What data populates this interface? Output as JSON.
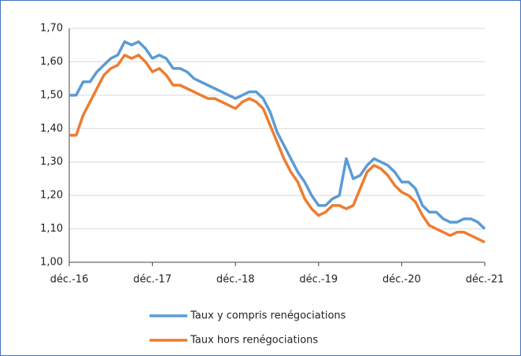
{
  "chart_data": {
    "type": "line",
    "categories": [
      "déc.-16",
      null,
      null,
      null,
      null,
      null,
      null,
      null,
      null,
      null,
      null,
      null,
      "déc.-17",
      null,
      null,
      null,
      null,
      null,
      null,
      null,
      null,
      null,
      null,
      null,
      "déc.-18",
      null,
      null,
      null,
      null,
      null,
      null,
      null,
      null,
      null,
      null,
      null,
      "déc.-19",
      null,
      null,
      null,
      null,
      null,
      null,
      null,
      null,
      null,
      null,
      null,
      "déc.-20",
      null,
      null,
      null,
      null,
      null,
      null,
      null,
      null,
      null,
      null,
      null,
      "déc.-21"
    ],
    "series": [
      {
        "name": "Taux y compris renégociations",
        "color": "#5b9bd5",
        "values": [
          1.5,
          1.5,
          1.54,
          1.54,
          1.57,
          1.59,
          1.61,
          1.62,
          1.66,
          1.65,
          1.66,
          1.64,
          1.61,
          1.62,
          1.61,
          1.58,
          1.58,
          1.57,
          1.55,
          1.54,
          1.53,
          1.52,
          1.51,
          1.5,
          1.49,
          1.5,
          1.51,
          1.51,
          1.49,
          1.45,
          1.39,
          1.35,
          1.31,
          1.27,
          1.24,
          1.2,
          1.17,
          1.17,
          1.19,
          1.2,
          1.31,
          1.25,
          1.26,
          1.29,
          1.31,
          1.3,
          1.29,
          1.27,
          1.24,
          1.24,
          1.22,
          1.17,
          1.15,
          1.15,
          1.13,
          1.12,
          1.12,
          1.13,
          1.13,
          1.12,
          1.1
        ]
      },
      {
        "name": "Taux hors renégociations",
        "color": "#ed7d31",
        "values": [
          1.38,
          1.38,
          1.44,
          1.48,
          1.52,
          1.56,
          1.58,
          1.59,
          1.62,
          1.61,
          1.62,
          1.6,
          1.57,
          1.58,
          1.56,
          1.53,
          1.53,
          1.52,
          1.51,
          1.5,
          1.49,
          1.49,
          1.48,
          1.47,
          1.46,
          1.48,
          1.49,
          1.48,
          1.46,
          1.41,
          1.36,
          1.31,
          1.27,
          1.24,
          1.19,
          1.16,
          1.14,
          1.15,
          1.17,
          1.17,
          1.16,
          1.17,
          1.22,
          1.27,
          1.29,
          1.28,
          1.26,
          1.23,
          1.21,
          1.2,
          1.18,
          1.14,
          1.11,
          1.1,
          1.09,
          1.08,
          1.09,
          1.09,
          1.08,
          1.07,
          1.06
        ]
      }
    ],
    "ylim": [
      1.0,
      1.7
    ],
    "yticks": [
      {
        "value": 1.0,
        "label": "1,00"
      },
      {
        "value": 1.1,
        "label": "1,10"
      },
      {
        "value": 1.2,
        "label": "1,20"
      },
      {
        "value": 1.3,
        "label": "1,30"
      },
      {
        "value": 1.4,
        "label": "1,40"
      },
      {
        "value": 1.5,
        "label": "1,50"
      },
      {
        "value": 1.6,
        "label": "1,60"
      },
      {
        "value": 1.7,
        "label": "1,70"
      }
    ],
    "grid": true,
    "legend": "bottom"
  }
}
